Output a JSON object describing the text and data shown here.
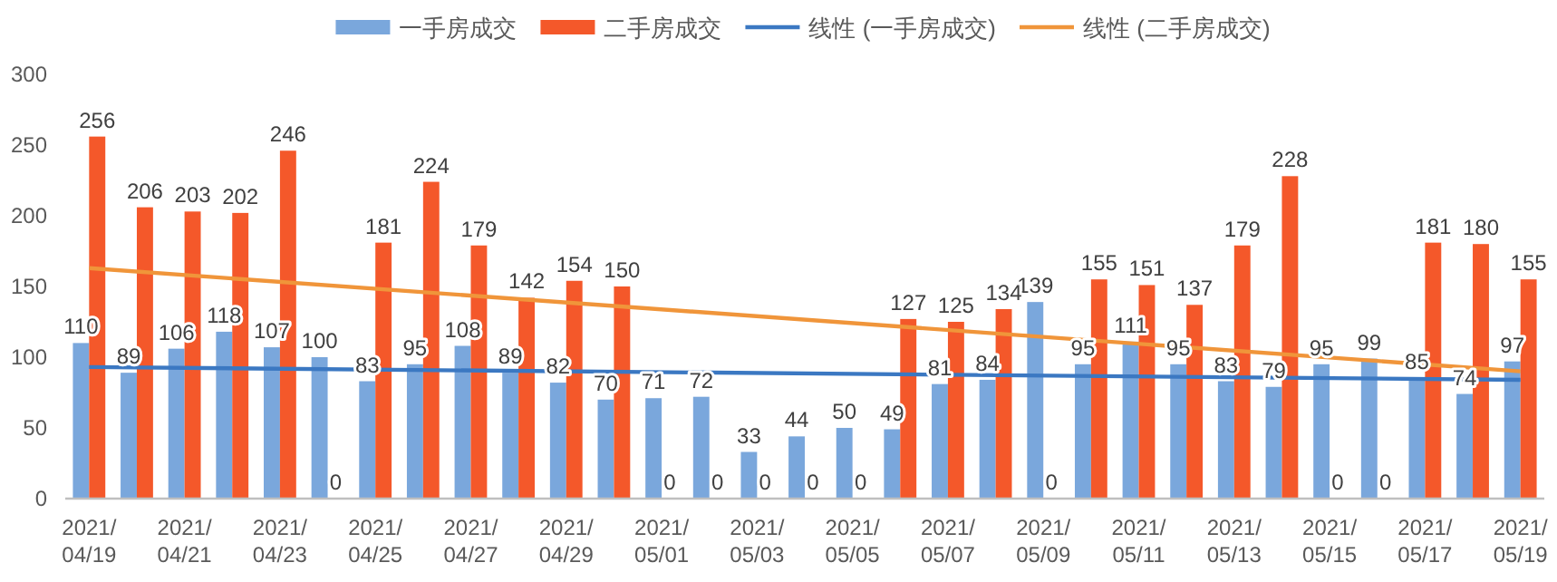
{
  "chart_data": {
    "type": "bar",
    "categories": [
      "2021/04/19",
      null,
      "2021/04/21",
      null,
      "2021/04/23",
      null,
      "2021/04/25",
      null,
      "2021/04/27",
      null,
      "2021/04/29",
      null,
      "2021/05/01",
      null,
      "2021/05/03",
      null,
      "2021/05/05",
      null,
      "2021/05/07",
      null,
      "2021/05/09",
      null,
      "2021/05/11",
      null,
      "2021/05/13",
      null,
      "2021/05/15",
      null,
      "2021/05/17",
      null,
      "2021/05/19"
    ],
    "series": [
      {
        "name": "一手房成交",
        "color": "#7aa7dc",
        "values": [
          110,
          89,
          106,
          118,
          107,
          100,
          83,
          95,
          108,
          89,
          82,
          70,
          71,
          72,
          33,
          44,
          50,
          49,
          81,
          84,
          139,
          95,
          111,
          95,
          83,
          79,
          95,
          99,
          85,
          74,
          97
        ],
        "value_labels": [
          "110",
          "89",
          "106",
          "118",
          "107",
          "100",
          "83",
          "95",
          "108",
          "89",
          "82",
          "70",
          "71",
          "72",
          "33",
          "44",
          "50",
          "49",
          "81",
          "84",
          "139",
          "95",
          "111",
          "95",
          "83",
          "79",
          "95",
          "99",
          "85",
          "74",
          "97"
        ]
      },
      {
        "name": "二手房成交",
        "color": "#f4582a",
        "values": [
          256,
          206,
          203,
          202,
          246,
          0,
          181,
          224,
          179,
          142,
          154,
          150,
          0,
          0,
          0,
          0,
          0,
          127,
          125,
          134,
          0,
          155,
          151,
          137,
          179,
          228,
          0,
          0,
          181,
          180,
          155
        ],
        "value_labels": [
          "256",
          "206",
          "203",
          "202",
          "246",
          "0",
          "181",
          "224",
          "179",
          "142",
          "154",
          "150",
          "0",
          "0",
          "0",
          "0",
          "0",
          "127",
          "125",
          "134",
          "0",
          "155",
          "151",
          "137",
          "179",
          "228",
          "0",
          "0",
          "181",
          "180",
          "155"
        ]
      },
      {
        "name": "线性 (一手房成交)",
        "type": "line",
        "color": "#3b78c2",
        "x": [
          "2021/04/19",
          "2021/05/19"
        ],
        "values": [
          93,
          84
        ]
      },
      {
        "name": "线性 (二手房成交)",
        "type": "line",
        "color": "#f0953a",
        "x": [
          "2021/04/19",
          "2021/05/19"
        ],
        "values": [
          163,
          90
        ]
      }
    ],
    "ylim": [
      0,
      300
    ],
    "yticks": [
      0,
      50,
      100,
      150,
      200,
      250,
      300
    ],
    "legend": "top",
    "grid": false
  }
}
